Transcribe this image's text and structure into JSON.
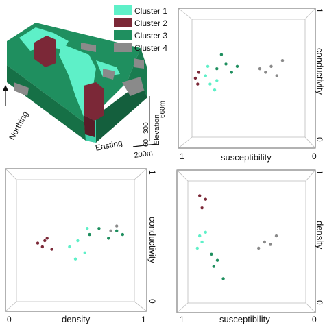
{
  "legend": {
    "items": [
      {
        "label": "Cluster 1",
        "color": "#5EF0C8"
      },
      {
        "label": "Cluster 2",
        "color": "#7B2837"
      },
      {
        "label": "Cluster 3",
        "color": "#1F8F5F"
      },
      {
        "label": "Cluster 4",
        "color": "#8A8A8A"
      }
    ]
  },
  "block_model": {
    "northing_label": "Northing",
    "easting_label": "Easting",
    "elevation_label": "Elevation",
    "elevation_ticks": [
      "60",
      "300",
      "660m"
    ],
    "scale_label": "200m"
  },
  "chart_data": [
    {
      "type": "scatter",
      "panel": "top-right",
      "xlabel": "susceptibility",
      "ylabel": "conductivity",
      "x_ticks": [
        "1",
        "0"
      ],
      "y_ticks": [
        "1",
        "0"
      ],
      "series": [
        {
          "name": "Cluster 1",
          "x": [
            0.88,
            0.84,
            0.8,
            0.86,
            0.78
          ],
          "y": [
            0.52,
            0.45,
            0.4,
            0.6,
            0.48
          ]
        },
        {
          "name": "Cluster 2",
          "x": [
            0.97,
            0.95,
            0.94
          ],
          "y": [
            0.5,
            0.45,
            0.55
          ]
        },
        {
          "name": "Cluster 3",
          "x": [
            0.78,
            0.7,
            0.65,
            0.74,
            0.6
          ],
          "y": [
            0.58,
            0.62,
            0.55,
            0.7,
            0.6
          ]
        },
        {
          "name": "Cluster 4",
          "x": [
            0.35,
            0.3,
            0.25,
            0.4,
            0.2
          ],
          "y": [
            0.55,
            0.6,
            0.52,
            0.58,
            0.65
          ]
        }
      ]
    },
    {
      "type": "scatter",
      "panel": "bottom-left",
      "xlabel": "density",
      "ylabel": "conductivity",
      "x_ticks": [
        "0",
        "1"
      ],
      "y_ticks": [
        "1",
        "0"
      ],
      "series": [
        {
          "name": "Cluster 1",
          "x": [
            0.45,
            0.52,
            0.58,
            0.6,
            0.5
          ],
          "y": [
            0.45,
            0.5,
            0.4,
            0.6,
            0.35
          ]
        },
        {
          "name": "Cluster 2",
          "x": [
            0.18,
            0.22,
            0.26,
            0.3,
            0.24
          ],
          "y": [
            0.48,
            0.45,
            0.52,
            0.43,
            0.5
          ]
        },
        {
          "name": "Cluster 3",
          "x": [
            0.62,
            0.7,
            0.78,
            0.85,
            0.9
          ],
          "y": [
            0.55,
            0.6,
            0.52,
            0.58,
            0.55
          ]
        },
        {
          "name": "Cluster 4",
          "x": [
            0.8,
            0.85
          ],
          "y": [
            0.58,
            0.62
          ]
        }
      ]
    },
    {
      "type": "scatter",
      "panel": "bottom-right",
      "xlabel": "susceptibility",
      "ylabel": "density",
      "x_ticks": [
        "1",
        "0"
      ],
      "y_ticks": [
        "1",
        "0"
      ],
      "series": [
        {
          "name": "Cluster 1",
          "x": [
            0.9,
            0.88,
            0.92,
            0.85
          ],
          "y": [
            0.55,
            0.5,
            0.45,
            0.58
          ]
        },
        {
          "name": "Cluster 2",
          "x": [
            0.85,
            0.88,
            0.9
          ],
          "y": [
            0.85,
            0.78,
            0.88
          ]
        },
        {
          "name": "Cluster 3",
          "x": [
            0.78,
            0.75,
            0.7,
            0.8
          ],
          "y": [
            0.3,
            0.35,
            0.2,
            0.4
          ]
        },
        {
          "name": "Cluster 4",
          "x": [
            0.35,
            0.3,
            0.25,
            0.4
          ],
          "y": [
            0.5,
            0.48,
            0.55,
            0.45
          ]
        }
      ]
    }
  ]
}
